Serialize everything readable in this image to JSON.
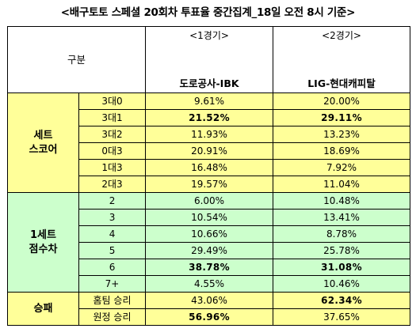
{
  "title": "<배구토토 스페셜 20회차 투표율 중간집계_18일 오전 8시 기준>",
  "header": {
    "category": "구분",
    "game1": "<1경기>",
    "game2": "<2경기>",
    "team1": "도로공사-IBK",
    "team2": "LIG-현대캐피탈"
  },
  "set_score": {
    "label_line1": "세트",
    "label_line2": "스코어",
    "rows": [
      {
        "option": "3대0",
        "g1": "9.61%",
        "g2": "20.00%"
      },
      {
        "option": "3대1",
        "g1": "21.52%",
        "g2": "29.11%"
      },
      {
        "option": "3대2",
        "g1": "11.93%",
        "g2": "13.23%"
      },
      {
        "option": "0대3",
        "g1": "20.91%",
        "g2": "18.69%"
      },
      {
        "option": "1대3",
        "g1": "16.48%",
        "g2": "7.92%"
      },
      {
        "option": "2대3",
        "g1": "19.57%",
        "g2": "11.04%"
      }
    ]
  },
  "set1_diff": {
    "label_line1": "1세트",
    "label_line2": "점수차",
    "rows": [
      {
        "option": "2",
        "g1": "6.00%",
        "g2": "10.48%"
      },
      {
        "option": "3",
        "g1": "10.54%",
        "g2": "13.41%"
      },
      {
        "option": "4",
        "g1": "10.66%",
        "g2": "8.78%"
      },
      {
        "option": "5",
        "g1": "29.49%",
        "g2": "25.78%"
      },
      {
        "option": "6",
        "g1": "38.78%",
        "g2": "31.08%"
      },
      {
        "option": "7+",
        "g1": "4.55%",
        "g2": "10.46%"
      }
    ]
  },
  "win_loss": {
    "label": "승패",
    "rows": [
      {
        "option": "홈팀 승리",
        "g1": "43.06%",
        "g2": "62.34%"
      },
      {
        "option": "원정 승리",
        "g1": "56.96%",
        "g2": "37.65%"
      }
    ]
  }
}
